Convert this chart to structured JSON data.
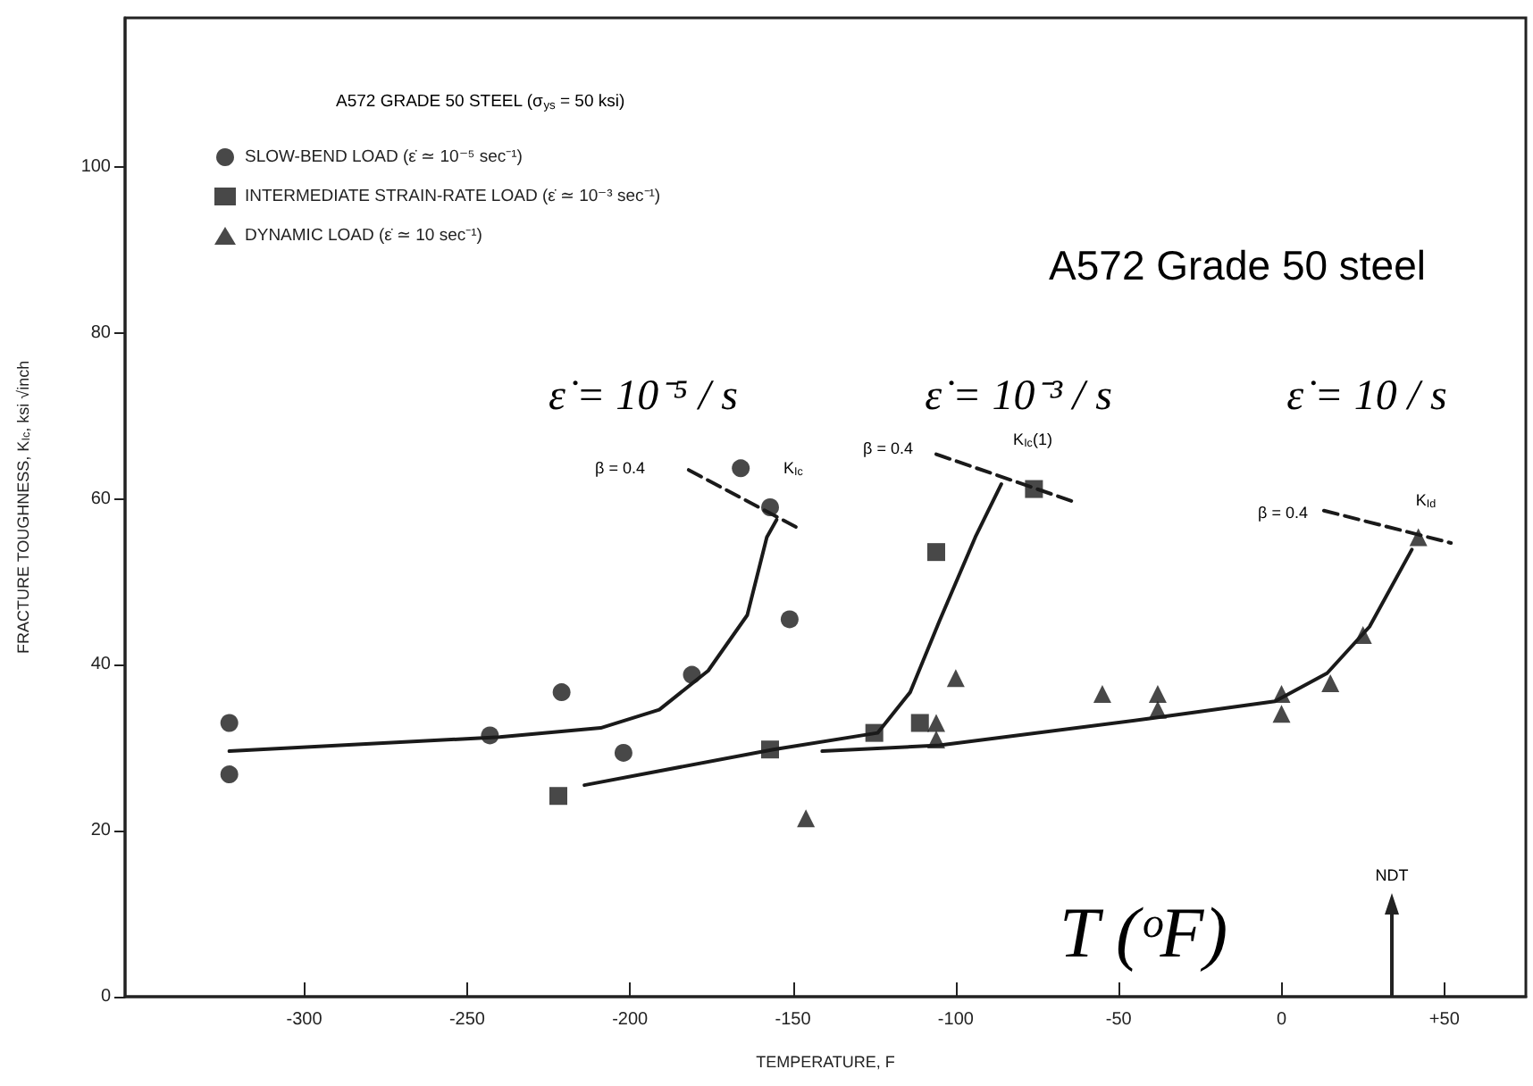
{
  "chart_data": {
    "type": "scatter",
    "title": "A572 Grade 50 steel",
    "xlabel": "TEMPERATURE, F",
    "ylabel": "FRACTURE TOUGHNESS, K$_{Ic}$, ksi √inch",
    "legend_title": "A572 GRADE 50 STEEL (σ$_{ys}$ = 50 ksi)",
    "xlim": [
      -355,
      75
    ],
    "xticks": [
      -300,
      -250,
      -200,
      -150,
      -100,
      -50,
      0,
      {
        "value": 50,
        "label": "+50"
      }
    ],
    "ylim": [
      0,
      118
    ],
    "yticks": [
      0,
      20,
      40,
      60,
      80,
      100
    ],
    "grid": false,
    "legend": "top left",
    "series": [
      {
        "name": "SLOW-BEND LOAD (ε̇ ≃ 10⁻⁵ sec⁻¹)",
        "color": "#1a1a1a",
        "marker": "circle",
        "x": [
          -323,
          -323,
          -243,
          -221,
          -202,
          -181,
          -166,
          -157,
          -151
        ],
        "values": [
          33,
          26.8,
          31.5,
          36.7,
          29.4,
          38.8,
          63.7,
          59,
          45.5
        ]
      },
      {
        "name": "INTERMEDIATE STRAIN-RATE LOAD (ε̇ ≃ 10⁻³ sec⁻¹)",
        "color": "#1a1a1a",
        "marker": "square",
        "x": [
          -222,
          -157,
          -125,
          -111,
          -106,
          -76
        ],
        "values": [
          24.2,
          29.8,
          31.8,
          33,
          53.6,
          61.2
        ]
      },
      {
        "name": "DYNAMIC LOAD (ε̇ ≃ 10 sec⁻¹)",
        "color": "#1a1a1a",
        "marker": "triangle",
        "x": [
          -146,
          -106,
          -106,
          -100,
          -55,
          -38,
          -38,
          0,
          0,
          15,
          25,
          42
        ],
        "values": [
          21.5,
          33,
          31,
          38.4,
          36.5,
          36.5,
          34.6,
          36.5,
          34.1,
          37.8,
          43.6,
          55.4
        ]
      },
      {
        "type": "line",
        "color": "#1a1a1a",
        "marker": "none",
        "line_style": "solid",
        "x": [
          -323,
          -240,
          -209,
          -191,
          -176,
          -164,
          -158,
          -155
        ],
        "values": [
          29.6,
          31.3,
          32.4,
          34.6,
          39.3,
          46,
          55.4,
          57.5
        ]
      },
      {
        "type": "line",
        "color": "#1a1a1a",
        "marker": "none",
        "line_style": "solid",
        "x": [
          -214,
          -156,
          -124,
          -114,
          -105,
          -94,
          -86
        ],
        "values": [
          25.5,
          29.8,
          31.8,
          36.7,
          45.3,
          55.4,
          61.8
        ]
      },
      {
        "type": "line",
        "color": "#1a1a1a",
        "marker": "none",
        "line_style": "solid",
        "x": [
          -141,
          -105,
          -41,
          -2,
          14,
          27,
          40
        ],
        "values": [
          29.6,
          30.3,
          33.5,
          35.6,
          39,
          44.6,
          53.9
        ]
      },
      {
        "type": "line",
        "color": "#1a1a1a",
        "marker": "none",
        "line_style": "dashed",
        "x": [
          -182,
          -148
        ],
        "values": [
          63.5,
          56.4
        ]
      },
      {
        "type": "line",
        "color": "#1a1a1a",
        "marker": "none",
        "line_style": "dashed",
        "x": [
          -106,
          -64
        ],
        "values": [
          65.4,
          59.7
        ]
      },
      {
        "type": "line",
        "color": "#1a1a1a",
        "marker": "none",
        "line_style": "dashed",
        "x": [
          13,
          52
        ],
        "values": [
          58.6,
          54.7
        ]
      }
    ],
    "annotations": [
      "ε̇ = 10⁻⁵ / s",
      "ε̇ = 10⁻³ / s",
      "ε̇ = 10 / s",
      "β = 0.4",
      "K$_{Ic}$",
      "β = 0.4",
      "K$_{Ic}$(1)",
      "β = 0.4",
      "K$_{Id}$",
      "NDT",
      "T (ᵒF)"
    ]
  }
}
